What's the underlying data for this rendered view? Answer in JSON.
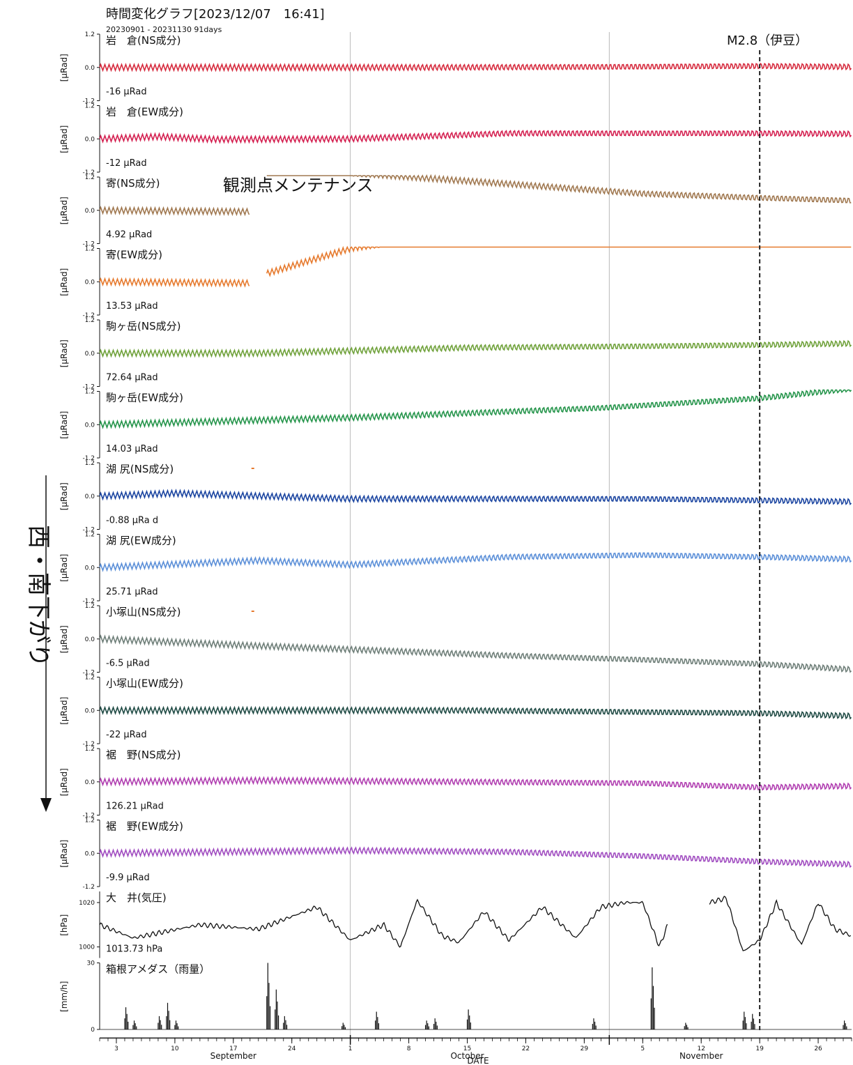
{
  "chart_data": {
    "type": "line",
    "title": "時間変化グラフ[2023/12/07　16:41]",
    "subtitle": "20230901 - 20231130 91days",
    "event_label": "M2.8（伊豆）",
    "maintenance_label": "観測点メンテナンス",
    "side_label": "西・南下がり",
    "xlabel": "DATE",
    "x_range": [
      "2023-09-01",
      "2023-11-30"
    ],
    "x_tick_labels": [
      {
        "date": "2023-09-03",
        "label": "3"
      },
      {
        "date": "2023-09-10",
        "label": "10"
      },
      {
        "date": "2023-09-17",
        "label": "17"
      },
      {
        "date": "2023-09-24",
        "label": "24"
      },
      {
        "date": "2023-10-01",
        "label": "1"
      },
      {
        "date": "2023-10-08",
        "label": "8"
      },
      {
        "date": "2023-10-15",
        "label": "15"
      },
      {
        "date": "2023-10-22",
        "label": "22"
      },
      {
        "date": "2023-10-29",
        "label": "29"
      },
      {
        "date": "2023-11-05",
        "label": "5"
      },
      {
        "date": "2023-11-12",
        "label": "12"
      },
      {
        "date": "2023-11-19",
        "label": "19"
      },
      {
        "date": "2023-11-26",
        "label": "26"
      }
    ],
    "month_labels": [
      {
        "date": "2023-09-17",
        "label": "September"
      },
      {
        "date": "2023-10-15",
        "label": "October"
      },
      {
        "date": "2023-11-12",
        "label": "November"
      }
    ],
    "month_boundaries": [
      "2023-10-01",
      "2023-11-01"
    ],
    "event_date": "2023-11-19",
    "panels": [
      {
        "name": "岩　倉(NS成分)",
        "value_label": "-16 μRad",
        "ylabel": "[μRad]",
        "unit": "μRad",
        "ylim": [
          -1.2,
          1.2
        ],
        "yticks": [
          "1.2",
          "0.0",
          "-1.2"
        ],
        "color": "#d62b3e",
        "points": [
          [
            "09-01",
            0.0
          ],
          [
            "09-20",
            0.0
          ],
          [
            "10-10",
            0.0
          ],
          [
            "10-31",
            0.02
          ],
          [
            "11-19",
            0.05
          ],
          [
            "11-30",
            0.02
          ]
        ]
      },
      {
        "name": "岩　倉(EW成分)",
        "value_label": "-12 μRad",
        "ylabel": "[μRad]",
        "unit": "μRad",
        "ylim": [
          -1.2,
          1.2
        ],
        "yticks": [
          "1.2",
          "0.0",
          "-1.2"
        ],
        "color": "#d42050",
        "points": [
          [
            "09-01",
            0.0
          ],
          [
            "09-08",
            0.08
          ],
          [
            "09-15",
            -0.02
          ],
          [
            "10-01",
            0.0
          ],
          [
            "10-20",
            0.2
          ],
          [
            "11-19",
            0.2
          ],
          [
            "11-30",
            0.18
          ]
        ]
      },
      {
        "name": "寄(NS成分)",
        "value_label": "4.92 μRad",
        "ylabel": "[μRad]",
        "unit": "μRad",
        "ylim": [
          -1.2,
          1.2
        ],
        "yticks": [
          "1.2",
          "0.0",
          "-1.2"
        ],
        "color": "#a07850",
        "points": [
          [
            "09-01",
            0.0
          ],
          [
            "09-19",
            -0.05
          ],
          null,
          [
            "09-21",
            2.15
          ],
          [
            "10-01",
            1.35
          ],
          [
            "10-20",
            0.95
          ],
          [
            "11-05",
            0.6
          ],
          [
            "11-19",
            0.45
          ],
          [
            "11-30",
            0.35
          ]
        ]
      },
      {
        "name": "寄(EW成分)",
        "value_label": "13.53 μRad",
        "ylabel": "[μRad]",
        "unit": "μRad",
        "ylim": [
          -1.2,
          1.2
        ],
        "yticks": [
          "1.2",
          "0.0",
          "-1.2"
        ],
        "color": "#e67a2e",
        "points": [
          [
            "09-01",
            0.0
          ],
          [
            "09-19",
            -0.05
          ],
          null,
          [
            "09-21",
            0.3
          ],
          [
            "10-01",
            1.2
          ],
          [
            "10-20",
            2.0
          ],
          [
            "11-05",
            2.3
          ],
          [
            "11-19",
            2.5
          ],
          [
            "11-30",
            2.55
          ]
        ]
      },
      {
        "name": "駒ヶ岳(NS成分)",
        "value_label": "72.64 μRad",
        "ylabel": "[μRad]",
        "unit": "μRad",
        "ylim": [
          -1.2,
          1.2
        ],
        "yticks": [
          "1.2",
          "0.0",
          "-1.2"
        ],
        "color": "#6fa13a",
        "points": [
          [
            "09-01",
            0.0
          ],
          [
            "09-20",
            0.0
          ],
          [
            "10-15",
            0.2
          ],
          [
            "11-05",
            0.25
          ],
          [
            "11-19",
            0.3
          ],
          [
            "11-30",
            0.35
          ]
        ]
      },
      {
        "name": "駒ヶ岳(EW成分)",
        "value_label": "14.03 μRad",
        "ylabel": "[μRad]",
        "unit": "μRad",
        "ylim": [
          -1.2,
          1.2
        ],
        "yticks": [
          "1.2",
          "0.0",
          "-1.2"
        ],
        "color": "#24944a",
        "points": [
          [
            "09-01",
            0.0
          ],
          [
            "10-01",
            0.25
          ],
          [
            "10-31",
            0.6
          ],
          [
            "11-19",
            0.95
          ],
          [
            "11-30",
            1.3
          ]
        ]
      },
      {
        "name": "湖 尻(NS成分)",
        "value_label": "-0.88 μRa d",
        "ylabel": "[μRad]",
        "unit": "μRad",
        "ylim": [
          -1.2,
          1.2
        ],
        "yticks": [
          "1.2",
          "0.0",
          "-1.2"
        ],
        "color": "#1a44a0",
        "points": [
          [
            "09-01",
            0.0
          ],
          [
            "09-10",
            0.1
          ],
          [
            "10-01",
            -0.1
          ],
          [
            "11-05",
            -0.1
          ],
          [
            "11-30",
            -0.2
          ]
        ]
      },
      {
        "name": "湖 尻(EW成分)",
        "value_label": "25.71 μRad",
        "ylabel": "[μRad]",
        "unit": "μRad",
        "ylim": [
          -1.2,
          1.2
        ],
        "yticks": [
          "1.2",
          "0.0",
          "-1.2"
        ],
        "color": "#5b8fd8",
        "points": [
          [
            "09-01",
            0.0
          ],
          [
            "09-20",
            0.25
          ],
          [
            "10-01",
            0.1
          ],
          [
            "10-20",
            0.38
          ],
          [
            "11-05",
            0.45
          ],
          [
            "11-19",
            0.38
          ],
          [
            "11-30",
            0.3
          ]
        ]
      },
      {
        "name": "小塚山(NS成分)",
        "value_label": "-6.5 μRad",
        "ylabel": "[μRad]",
        "unit": "μRad",
        "ylim": [
          -1.2,
          1.2
        ],
        "yticks": [
          "1.2",
          "0.0",
          "-1.2"
        ],
        "color": "#6e7e78",
        "points": [
          [
            "09-01",
            0.0
          ],
          [
            "09-20",
            -0.25
          ],
          [
            "10-20",
            -0.6
          ],
          [
            "11-05",
            -0.75
          ],
          [
            "11-19",
            -0.9
          ],
          [
            "11-30",
            -1.1
          ]
        ]
      },
      {
        "name": "小塚山(EW成分)",
        "value_label": "-22 μRad",
        "ylabel": "[μRad]",
        "unit": "μRad",
        "ylim": [
          -1.2,
          1.2
        ],
        "yticks": [
          "1.2",
          "0.0",
          "-1.2"
        ],
        "color": "#1f4a44",
        "points": [
          [
            "09-01",
            0.0
          ],
          [
            "10-15",
            0.0
          ],
          [
            "11-19",
            -0.1
          ],
          [
            "11-30",
            -0.2
          ]
        ]
      },
      {
        "name": "裾　野(NS成分)",
        "value_label": "126.21 μRad",
        "ylabel": "[μRad]",
        "unit": "μRad",
        "ylim": [
          -1.2,
          1.2
        ],
        "yticks": [
          "1.2",
          "0.0",
          "-1.2"
        ],
        "color": "#b03db0",
        "points": [
          [
            "09-01",
            0.0
          ],
          [
            "09-20",
            0.05
          ],
          [
            "10-15",
            0.0
          ],
          [
            "11-05",
            -0.05
          ],
          [
            "11-19",
            -0.2
          ],
          [
            "11-30",
            -0.15
          ]
        ]
      },
      {
        "name": "裾　野(EW成分)",
        "value_label": "-9.9 μRad",
        "ylabel": "[μRad]",
        "unit": "μRad",
        "ylim": [
          -1.2,
          1.2
        ],
        "yticks": [
          "1.2",
          "0.0",
          "-1.2"
        ],
        "color": "#a04cc0",
        "points": [
          [
            "09-01",
            0.0
          ],
          [
            "10-01",
            0.1
          ],
          [
            "10-20",
            0.05
          ],
          [
            "11-05",
            -0.1
          ],
          [
            "11-19",
            -0.3
          ],
          [
            "11-30",
            -0.4
          ]
        ]
      },
      {
        "name": "大　井(気圧)",
        "value_label": "1013.73 hPa",
        "ylabel": "[hPa]",
        "unit": "hPa",
        "ylim": [
          995,
          1025
        ],
        "yticks": [
          "1020",
          "1000"
        ],
        "color": "#111111",
        "points": [
          [
            "09-01",
            1010
          ],
          [
            "09-05",
            1004
          ],
          [
            "09-13",
            1010
          ],
          [
            "09-20",
            1008
          ],
          [
            "09-27",
            1018
          ],
          [
            "10-01",
            1003
          ],
          [
            "10-05",
            1010
          ],
          [
            "10-07",
            1000
          ],
          [
            "10-09",
            1021
          ],
          [
            "10-12",
            1005
          ],
          [
            "10-14",
            1002
          ],
          [
            "10-17",
            1016
          ],
          [
            "10-20",
            1003
          ],
          [
            "10-24",
            1018
          ],
          [
            "10-28",
            1004
          ],
          [
            "10-31",
            1018
          ],
          [
            "11-03",
            1020
          ],
          [
            "11-05",
            1020
          ],
          [
            "11-07",
            1000
          ],
          [
            "11-08",
            1010
          ],
          null,
          [
            "11-13",
            1020
          ],
          [
            "11-15",
            1022
          ],
          [
            "11-17",
            998
          ],
          [
            "11-19",
            1003
          ],
          [
            "11-21",
            1020
          ],
          [
            "11-24",
            1001
          ],
          [
            "11-26",
            1020
          ],
          [
            "11-28",
            1008
          ],
          [
            "11-30",
            1005
          ]
        ]
      },
      {
        "name": "箱根アメダス（雨量）",
        "value_label": "",
        "ylabel": "[mm/h]",
        "unit": "mm/h",
        "ylim": [
          0,
          30
        ],
        "yticks": [
          "30",
          "0"
        ],
        "color": "#111111",
        "bars": [
          [
            "09-04",
            10
          ],
          [
            "09-05",
            4
          ],
          [
            "09-08",
            6
          ],
          [
            "09-09",
            12
          ],
          [
            "09-10",
            4
          ],
          [
            "09-21",
            30
          ],
          [
            "09-22",
            18
          ],
          [
            "09-23",
            6
          ],
          [
            "09-30",
            3
          ],
          [
            "10-04",
            8
          ],
          [
            "10-10",
            4
          ],
          [
            "10-11",
            5
          ],
          [
            "10-15",
            9
          ],
          [
            "10-30",
            5
          ],
          [
            "11-06",
            28
          ],
          [
            "11-10",
            3
          ],
          [
            "11-17",
            8
          ],
          [
            "11-18",
            7
          ],
          [
            "11-29",
            4
          ]
        ]
      }
    ]
  }
}
